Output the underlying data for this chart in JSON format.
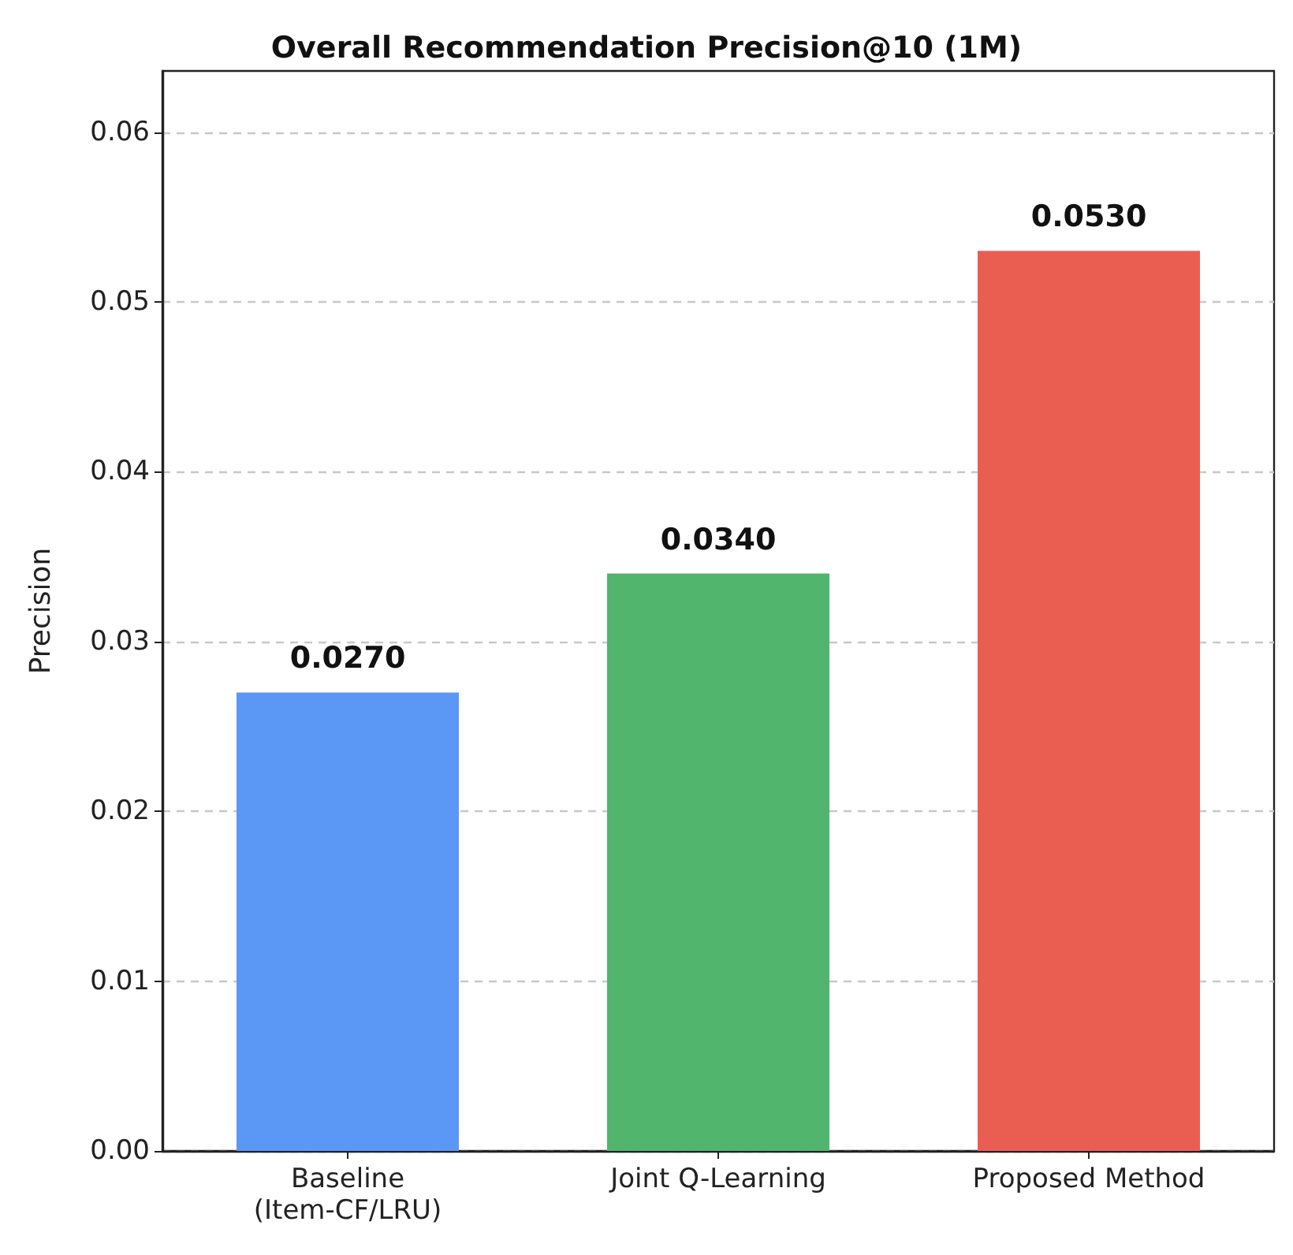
{
  "chart_data": {
    "type": "bar",
    "title": "Overall Recommendation Precision@10 (1M)",
    "ylabel": "Precision",
    "categories": [
      "Baseline\n(Item-CF/LRU)",
      "Joint Q-Learning",
      "Proposed Method"
    ],
    "values": [
      0.027,
      0.034,
      0.053
    ],
    "colors": [
      "#5b97f5",
      "#51b56d",
      "#ea5e52"
    ],
    "value_labels": [
      "0.0270",
      "0.0340",
      "0.0530"
    ],
    "ylim": [
      0,
      0.0636
    ],
    "yticks": [
      {
        "value": 0,
        "label": "0.00"
      },
      {
        "value": 0.01,
        "label": "0.01"
      },
      {
        "value": 0.02,
        "label": "0.02"
      },
      {
        "value": 0.03,
        "label": "0.03"
      },
      {
        "value": 0.04,
        "label": "0.04"
      },
      {
        "value": 0.05,
        "label": "0.05"
      },
      {
        "value": 0.06,
        "label": "0.06"
      }
    ],
    "grid": "y"
  }
}
